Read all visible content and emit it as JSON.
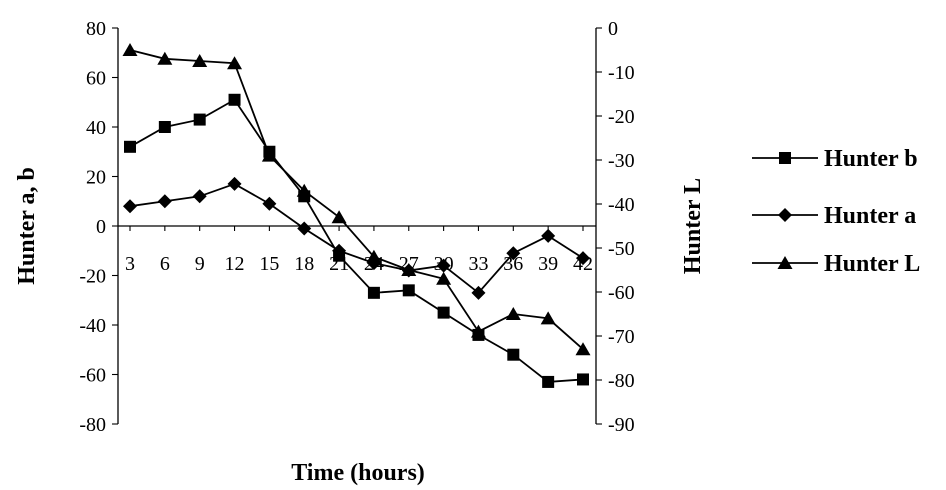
{
  "chart_data": {
    "type": "line",
    "x": [
      3,
      6,
      9,
      12,
      15,
      18,
      21,
      24,
      27,
      30,
      33,
      36,
      39,
      42
    ],
    "x_tick_labels": [
      "3",
      "6",
      "9",
      "12",
      "15",
      "18",
      "21",
      "24",
      "27",
      "30",
      "33",
      "36",
      "39",
      "42"
    ],
    "xlabel": "Time (hours)",
    "ylabel_left": "Hunter a, b",
    "ylabel_right": "Hunter L",
    "ylim_left": [
      -80,
      80
    ],
    "ylim_right": [
      -90,
      0
    ],
    "y_ticks_left": [
      "80",
      "60",
      "40",
      "20",
      "0",
      "-20",
      "-40",
      "-60",
      "-80"
    ],
    "y_ticks_right": [
      "0",
      "-10",
      "-20",
      "-30",
      "-40",
      "-50",
      "-60",
      "-70",
      "-80",
      "-90"
    ],
    "grid": false,
    "legend_position": "right",
    "series": [
      {
        "name": "Hunter b",
        "axis": "left",
        "marker": "square",
        "values": [
          32,
          40,
          43,
          51,
          30,
          12,
          -12,
          -27,
          -26,
          -35,
          -44,
          -52,
          -63,
          -62
        ]
      },
      {
        "name": "Hunter a",
        "axis": "left",
        "marker": "diamond",
        "values": [
          8,
          10,
          12,
          17,
          9,
          -1,
          -10,
          -15,
          -18,
          -16,
          -27,
          -11,
          -4,
          -13
        ]
      },
      {
        "name": "Hunter L",
        "axis": "right",
        "marker": "triangle",
        "values": [
          -5,
          -7,
          -7.5,
          -8,
          -29,
          -37,
          -43,
          -52,
          -55,
          -57,
          -69,
          -65,
          -66,
          -73
        ]
      }
    ]
  }
}
